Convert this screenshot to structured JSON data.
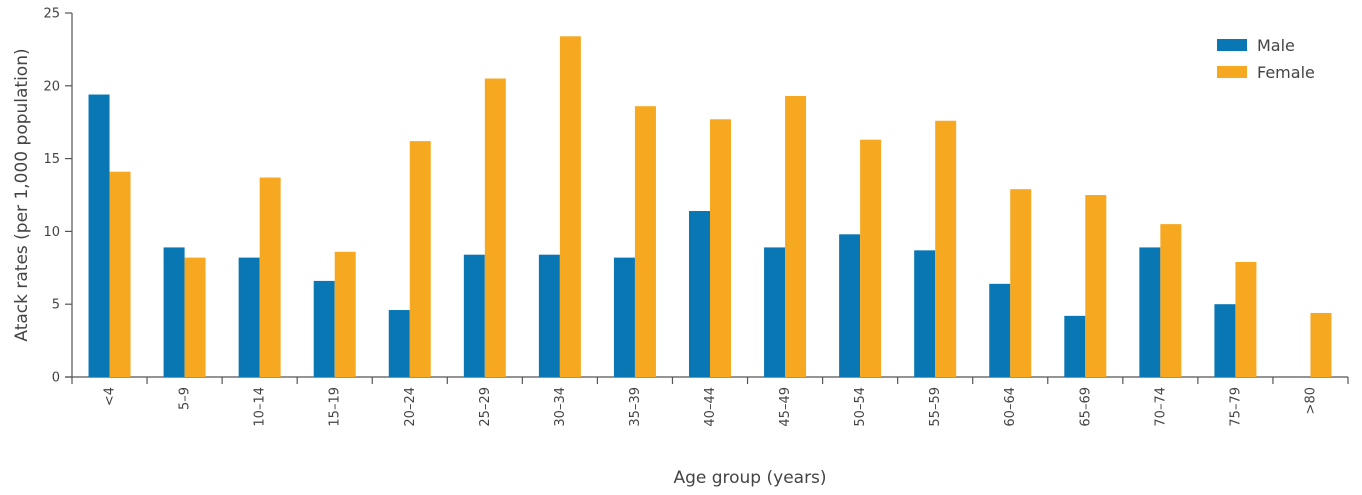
{
  "chart_data": {
    "type": "bar",
    "title": "",
    "xlabel": "Age group (years)",
    "ylabel": "Atack rates (per 1,000 population)",
    "ylim": [
      0,
      25
    ],
    "yticks": [
      0,
      5,
      10,
      15,
      20,
      25
    ],
    "grid": false,
    "legend_position": "top-right",
    "categories": [
      "<4",
      "5–9",
      "10–14",
      "15–19",
      "20–24",
      "25–29",
      "30–34",
      "35–39",
      "40–44",
      "45–49",
      "50–54",
      "55–59",
      "60–64",
      "65–69",
      "70–74",
      "75–79",
      ">80"
    ],
    "series": [
      {
        "name": "Male",
        "color": "#0a77b5",
        "values": [
          19.4,
          8.9,
          8.2,
          6.6,
          4.6,
          8.4,
          8.4,
          8.2,
          11.4,
          8.9,
          9.8,
          8.7,
          6.4,
          4.2,
          8.9,
          5.0,
          0
        ]
      },
      {
        "name": "Female",
        "color": "#f6a821",
        "values": [
          14.1,
          8.2,
          13.7,
          8.6,
          16.2,
          20.5,
          23.4,
          18.6,
          17.7,
          19.3,
          16.3,
          17.6,
          12.9,
          12.5,
          10.5,
          7.9,
          4.4
        ]
      }
    ]
  }
}
